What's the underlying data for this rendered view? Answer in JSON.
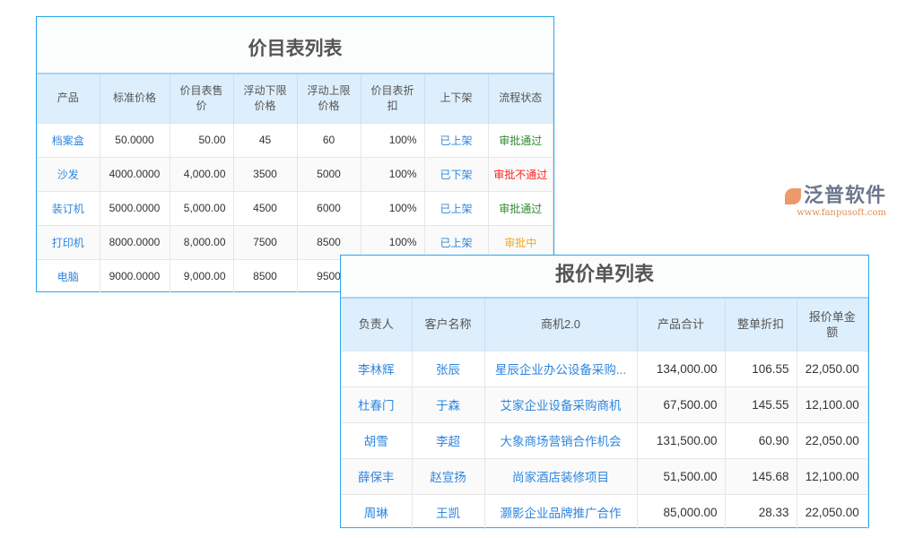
{
  "price_list": {
    "title": "价目表列表",
    "headers": [
      "产品",
      "标准价格",
      "价目表售价",
      "浮动下限价格",
      "浮动上限价格",
      "价目表折扣",
      "上下架",
      "流程状态"
    ],
    "rows": [
      [
        "档案盒",
        "50.0000",
        "50.00",
        "45",
        "60",
        "100%",
        "已上架",
        "审批通过"
      ],
      [
        "沙发",
        "4000.0000",
        "4,000.00",
        "3500",
        "5000",
        "100%",
        "已下架",
        "审批不通过"
      ],
      [
        "装订机",
        "5000.0000",
        "5,000.00",
        "4500",
        "6000",
        "100%",
        "已上架",
        "审批通过"
      ],
      [
        "打印机",
        "8000.0000",
        "8,000.00",
        "7500",
        "8500",
        "100%",
        "已上架",
        "审批中"
      ],
      [
        "电脑",
        "9000.0000",
        "9,000.00",
        "8500",
        "9500",
        "",
        "",
        ""
      ]
    ],
    "status_colors": {
      "审批通过": "#2e8b2e",
      "审批不通过": "#ff2020",
      "审批中": "#f5a623"
    }
  },
  "quote_list": {
    "title": "报价单列表",
    "headers": [
      "负责人",
      "客户名称",
      "商机2.0",
      "产品合计",
      "整单折扣",
      "报价单金额"
    ],
    "rows": [
      [
        "李林辉",
        "张辰",
        "星辰企业办公设备采购...",
        "134,000.00",
        "106.55",
        "22,050.00"
      ],
      [
        "杜春门",
        "于森",
        "艾家企业设备采购商机",
        "67,500.00",
        "145.55",
        "12,100.00"
      ],
      [
        "胡雪",
        "李超",
        "大象商场营销合作机会",
        "131,500.00",
        "60.90",
        "22,050.00"
      ],
      [
        "薛保丰",
        "赵宣扬",
        "尚家酒店装修项目",
        "51,500.00",
        "145.68",
        "12,100.00"
      ],
      [
        "周琳",
        "王凯",
        "灏影企业品牌推广合作",
        "85,000.00",
        "28.33",
        "22,050.00"
      ]
    ]
  },
  "watermark": {
    "name": "泛普软件",
    "url": "www.fanpusoft.com"
  },
  "colors": {
    "link": "#2e86de",
    "border": "#29a8e8",
    "header_bg": "#ddeefc"
  }
}
